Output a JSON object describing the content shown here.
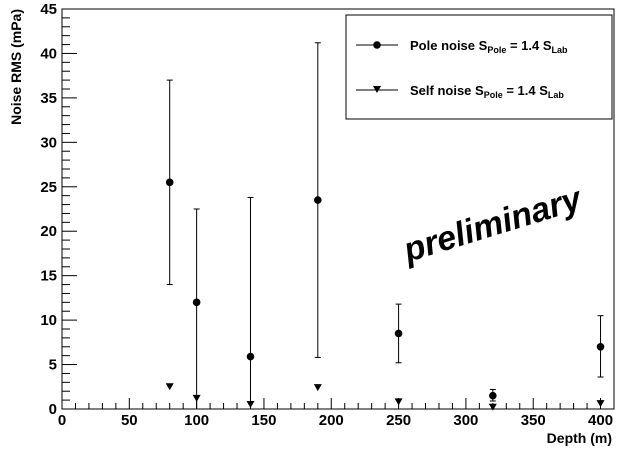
{
  "chart_data": {
    "type": "scatter",
    "xlabel": "Depth (m)",
    "ylabel": "Noise RMS (mPa)",
    "xlim": [
      0,
      410
    ],
    "ylim": [
      0,
      45
    ],
    "x_ticks": [
      0,
      50,
      100,
      150,
      200,
      250,
      300,
      350,
      400
    ],
    "y_ticks": [
      0,
      5,
      10,
      15,
      20,
      25,
      30,
      35,
      40,
      45
    ],
    "grid": false,
    "legend_position": "top-right",
    "annotation": "preliminary",
    "series": [
      {
        "name": "Pole noise S_Pole = 1.4 S_Lab",
        "legend_main": "Pole noise S",
        "legend_sub1": "Pole",
        "legend_mid": " = 1.4 S",
        "legend_sub2": "Lab",
        "marker": "circle",
        "points": [
          {
            "x": 80,
            "y": 25.5,
            "err_low": 14.0,
            "err_high": 37.0
          },
          {
            "x": 100,
            "y": 12.0,
            "err_low": 0.0,
            "err_high": 22.5
          },
          {
            "x": 140,
            "y": 5.9,
            "err_low": 0.0,
            "err_high": 23.8
          },
          {
            "x": 190,
            "y": 23.5,
            "err_low": 5.8,
            "err_high": 41.2
          },
          {
            "x": 250,
            "y": 8.5,
            "err_low": 5.2,
            "err_high": 11.8
          },
          {
            "x": 320,
            "y": 1.5,
            "err_low": 0.9,
            "err_high": 2.2
          },
          {
            "x": 400,
            "y": 7.0,
            "err_low": 3.6,
            "err_high": 10.5
          }
        ]
      },
      {
        "name": "Self noise S_Pole = 1.4 S_Lab",
        "legend_main": "Self noise S",
        "legend_sub1": "Pole",
        "legend_mid": " = 1.4 S",
        "legend_sub2": "Lab",
        "marker": "triangle-down",
        "points": [
          {
            "x": 80,
            "y": 2.5
          },
          {
            "x": 100,
            "y": 1.2
          },
          {
            "x": 140,
            "y": 0.5
          },
          {
            "x": 190,
            "y": 2.4
          },
          {
            "x": 250,
            "y": 0.8
          },
          {
            "x": 320,
            "y": 0.2
          },
          {
            "x": 400,
            "y": 0.6
          }
        ]
      }
    ]
  }
}
